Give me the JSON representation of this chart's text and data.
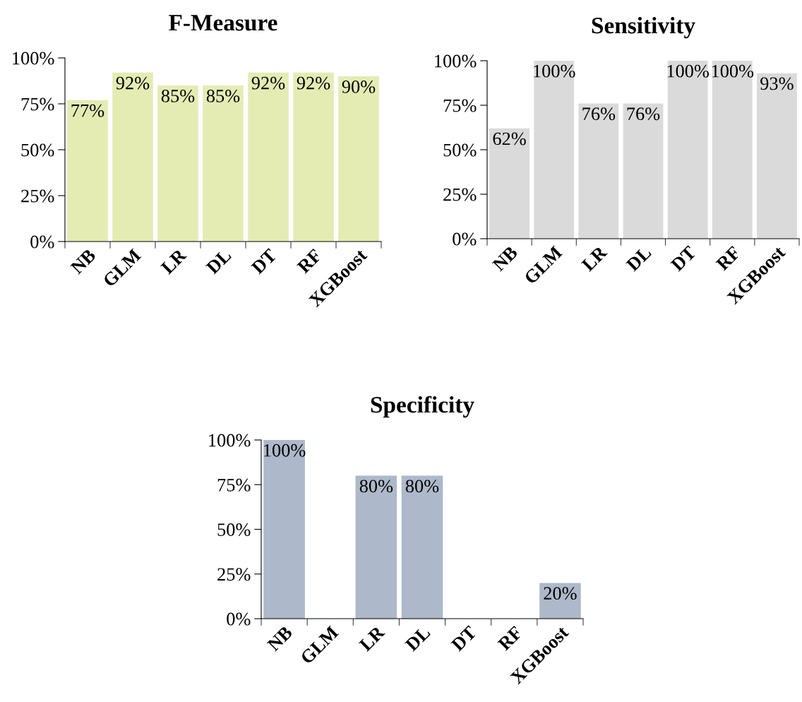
{
  "chart_data": [
    {
      "type": "bar",
      "title": "F-Measure",
      "categories": [
        "NB",
        "GLM",
        "LR",
        "DL",
        "DT",
        "RF",
        "XGBoost"
      ],
      "values": [
        77,
        92,
        85,
        85,
        92,
        92,
        90
      ],
      "value_labels": [
        "77%",
        "92%",
        "85%",
        "85%",
        "92%",
        "92%",
        "90%"
      ],
      "color": "#e4ecb4",
      "ylim": [
        0,
        100
      ],
      "yticks": [
        {
          "value": 0,
          "label": "0%"
        },
        {
          "value": 25,
          "label": "25%"
        },
        {
          "value": 50,
          "label": "50%"
        },
        {
          "value": 75,
          "label": "75%"
        },
        {
          "value": 100,
          "label": "100%"
        }
      ],
      "grid": false
    },
    {
      "type": "bar",
      "title": "Sensitivity",
      "categories": [
        "NB",
        "GLM",
        "LR",
        "DL",
        "DT",
        "RF",
        "XGBoost"
      ],
      "values": [
        62,
        100,
        76,
        76,
        100,
        100,
        93
      ],
      "value_labels": [
        "62%",
        "100%",
        "76%",
        "76%",
        "100%",
        "100%",
        "93%"
      ],
      "color": "#dadada",
      "ylim": [
        0,
        100
      ],
      "yticks": [
        {
          "value": 0,
          "label": "0%"
        },
        {
          "value": 25,
          "label": "25%"
        },
        {
          "value": 50,
          "label": "50%"
        },
        {
          "value": 75,
          "label": "75%"
        },
        {
          "value": 100,
          "label": "100%"
        }
      ],
      "grid": false
    },
    {
      "type": "bar",
      "title": "Specificity",
      "categories": [
        "NB",
        "GLM",
        "LR",
        "DL",
        "DT",
        "RF",
        "XGBoost"
      ],
      "values": [
        100,
        0,
        80,
        80,
        0,
        0,
        20
      ],
      "value_labels": [
        "100%",
        null,
        "80%",
        "80%",
        null,
        null,
        "20%"
      ],
      "color": "#adb9ca",
      "ylim": [
        0,
        100
      ],
      "yticks": [
        {
          "value": 0,
          "label": "0%"
        },
        {
          "value": 25,
          "label": "25%"
        },
        {
          "value": 50,
          "label": "50%"
        },
        {
          "value": 75,
          "label": "75%"
        },
        {
          "value": 100,
          "label": "100%"
        }
      ],
      "grid": false
    }
  ]
}
